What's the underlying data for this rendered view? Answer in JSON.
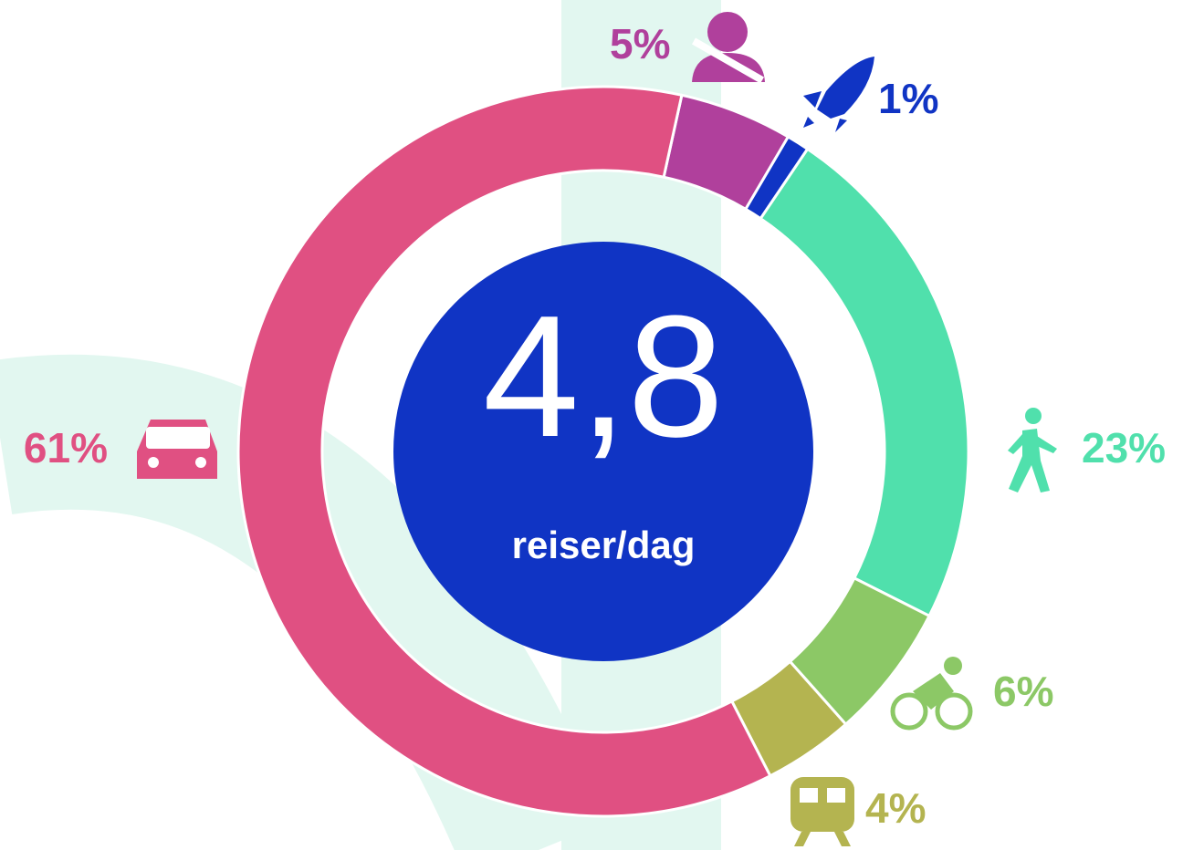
{
  "chart_data": {
    "type": "donut",
    "center_value": "4,8",
    "center_label": "reiser/dag",
    "values": [
      5,
      1,
      23,
      6,
      4,
      61
    ],
    "value_labels": [
      "5%",
      "1%",
      "23%",
      "6%",
      "4%",
      "61%"
    ],
    "colors": [
      "#b0409c",
      "#1034c4",
      "#50e0ac",
      "#8cc866",
      "#b4b450",
      "#e05082"
    ]
  }
}
